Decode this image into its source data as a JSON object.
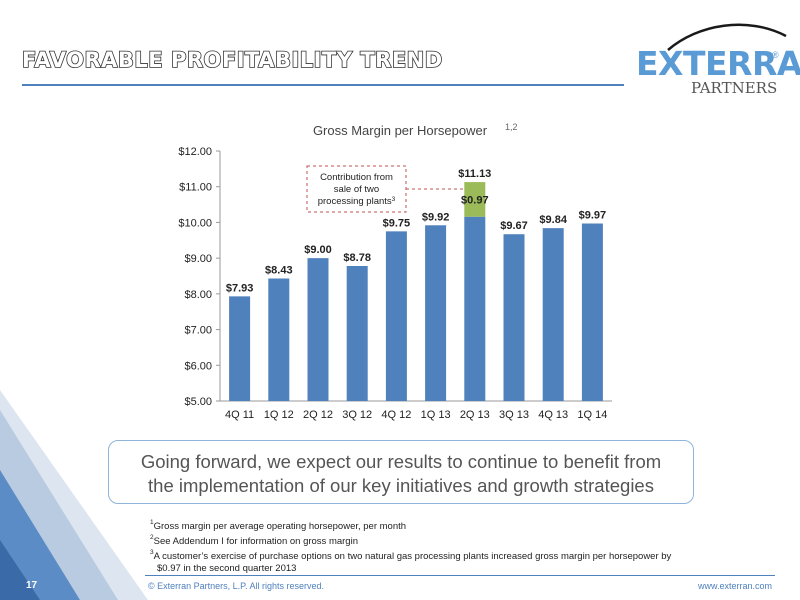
{
  "slide": {
    "title": "FAVORABLE PROFITABILITY TREND",
    "page_number": "17",
    "copyright": "© Exterran Partners, L.P. All rights reserved.",
    "website": "www.exterran.com"
  },
  "logo": {
    "word": "EXTERRAN",
    "sub": "PARTNERS",
    "reg": "®"
  },
  "callout": {
    "line1": "Going forward, we expect our results to continue to benefit from",
    "line2": "the implementation of our key initiatives and growth strategies"
  },
  "footnotes": [
    {
      "sup": "1",
      "text": "Gross margin per average operating horsepower, per month"
    },
    {
      "sup": "2",
      "text": "See Addendum I for information on gross margin"
    },
    {
      "sup": "3",
      "text": "A customer’s exercise of purchase options on two natural gas processing plants increased gross margin per horsepower by"
    },
    {
      "sup": "",
      "text": "$0.97 in the second quarter 2013"
    }
  ],
  "colors": {
    "bar": "#4f81bd",
    "contribution": "#9bbb59",
    "accent": "#4f81bd",
    "annotation": "#c0504d"
  },
  "chart_data": {
    "type": "bar",
    "title": "Gross Margin per Horsepower",
    "title_superscript": "1,2",
    "categories": [
      "4Q 11",
      "1Q 12",
      "2Q 12",
      "3Q 12",
      "4Q 12",
      "1Q 13",
      "2Q 13",
      "3Q 13",
      "4Q 13",
      "1Q 14"
    ],
    "values": [
      7.93,
      8.43,
      9.0,
      8.78,
      9.75,
      9.92,
      11.13,
      9.67,
      9.84,
      9.97
    ],
    "value_labels": [
      "$7.93",
      "$8.43",
      "$9.00",
      "$8.78",
      "$9.75",
      "$9.92",
      "$11.13",
      "$9.67",
      "$9.84",
      "$9.97"
    ],
    "stacked_contribution": {
      "category": "2Q 13",
      "value": 0.97,
      "label": "$0.97"
    },
    "annotation": {
      "lines": [
        "Contribution from",
        "sale of two",
        "processing plants"
      ],
      "superscript": "3"
    },
    "ylim": [
      5,
      12
    ],
    "yticks": [
      5,
      6,
      7,
      8,
      9,
      10,
      11,
      12
    ],
    "ytick_labels": [
      "$5.00",
      "$6.00",
      "$7.00",
      "$8.00",
      "$9.00",
      "$10.00",
      "$11.00",
      "$12.00"
    ],
    "xlabel": "",
    "ylabel": "",
    "grid": false,
    "legend": "none"
  }
}
